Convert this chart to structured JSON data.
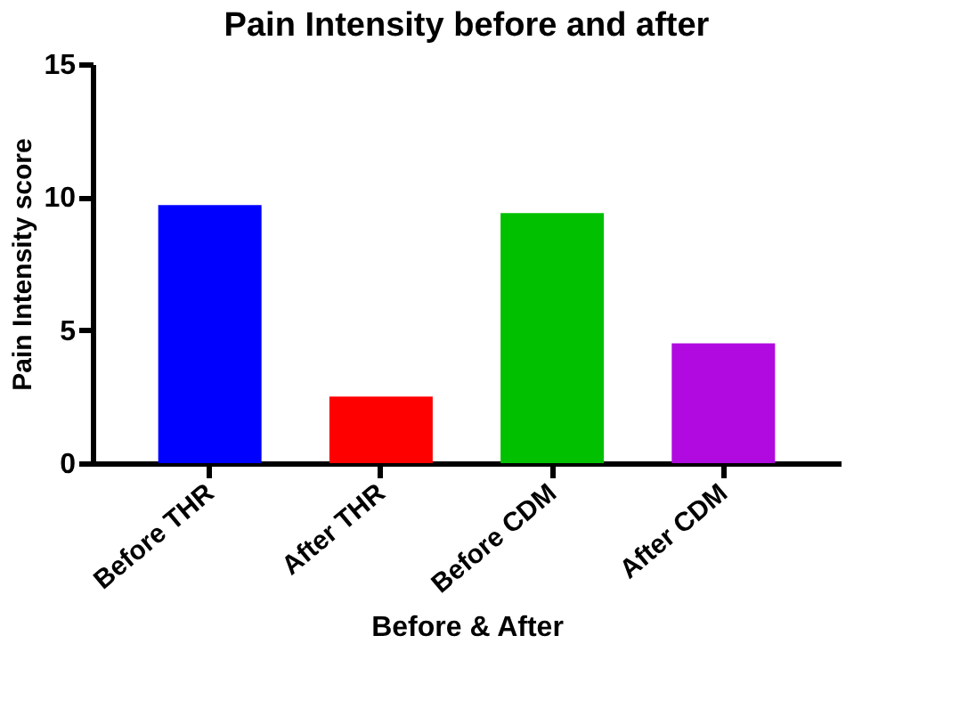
{
  "chart_data": {
    "type": "bar",
    "title": "Pain Intensity before and after",
    "xlabel": "Before & After",
    "ylabel": "Pain Intensity score",
    "categories": [
      "Before THR",
      "After THR",
      "Before CDM",
      "After CDM"
    ],
    "values": [
      9.7,
      2.5,
      9.4,
      4.5
    ],
    "colors": [
      "#0000ff",
      "#ff0000",
      "#00c000",
      "#b00ae0"
    ],
    "ylim": [
      0,
      15
    ],
    "yticks": [
      0,
      5,
      10,
      15
    ],
    "grid": false
  }
}
